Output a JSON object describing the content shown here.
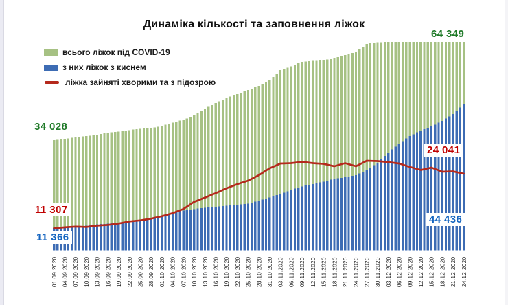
{
  "title": "Динаміка кількості та заповнення ліжок",
  "legend": {
    "items": [
      {
        "label": "всього ліжок під COVID-19",
        "type": "bar-swatch",
        "color_key": "total_bar"
      },
      {
        "label": "з них ліжок з киснем",
        "type": "bar-swatch",
        "color_key": "oxygen_bar"
      },
      {
        "label": "ліжка зайняті  хворими та з підозрою",
        "type": "line-swatch",
        "color_key": "occupied_line"
      }
    ]
  },
  "chart_data": {
    "type": "bar+line",
    "title": "Динаміка кількості та заповнення ліжок",
    "xlabel": "",
    "ylabel": "",
    "grid": false,
    "legend_position": "top-left",
    "dates": [
      "01.09.2020",
      "04.09.2020",
      "07.09.2020",
      "10.09.2020",
      "13.09.2020",
      "16.09.2020",
      "19.09.2020",
      "22.09.2020",
      "25.09.2020",
      "28.09.2020",
      "01.10.2020",
      "04.10.2020",
      "07.10.2020",
      "10.10.2020",
      "13.10.2020",
      "16.10.2020",
      "19.10.2020",
      "22.10.2020",
      "25.10.2020",
      "28.10.2020",
      "31.10.2020",
      "03.11.2020",
      "06.11.2020",
      "09.11.2020",
      "12.11.2020",
      "15.11.2020",
      "18.11.2020",
      "21.11.2020",
      "24.11.2020",
      "27.11.2020",
      "30.11.2020",
      "03.12.2020",
      "06.12.2020",
      "09.12.2020",
      "12.12.2020",
      "15.12.2020",
      "18.12.2020",
      "21.12.2020",
      "24.12.2020"
    ],
    "bars_per_label_interval": 3,
    "series": [
      {
        "key": "total",
        "name": "всього ліжок під COVID-19",
        "type": "bar",
        "color_key": "total_bar",
        "values": [
          34028,
          34460,
          34890,
          35320,
          35740,
          36280,
          36700,
          37130,
          37560,
          37770,
          38410,
          39480,
          40330,
          41610,
          43750,
          45450,
          47160,
          48230,
          49510,
          50790,
          52480,
          55650,
          56800,
          58200,
          58500,
          58700,
          59300,
          60300,
          61300,
          63700,
          64250,
          64349,
          64349,
          64349,
          64349,
          64349,
          64349,
          64349,
          64349
        ]
      },
      {
        "key": "oxygen",
        "name": "з них ліжок з киснем",
        "type": "bar",
        "color_key": "oxygen_bar",
        "values": [
          11366,
          11550,
          11730,
          11920,
          12290,
          12470,
          12660,
          13210,
          13580,
          13770,
          14320,
          15430,
          15980,
          16350,
          16720,
          16910,
          17280,
          17460,
          17830,
          18570,
          19490,
          20420,
          21520,
          22450,
          23060,
          23740,
          24480,
          24900,
          25450,
          26740,
          28770,
          31540,
          33930,
          35960,
          37430,
          38540,
          40010,
          41860,
          44436
        ]
      },
      {
        "key": "occupied",
        "name": "ліжка зайняті хворими та з підозрою",
        "type": "line",
        "color_key": "occupied_line",
        "values": [
          11307,
          11560,
          11720,
          11640,
          11960,
          12120,
          12450,
          12930,
          13170,
          13570,
          14140,
          14860,
          15830,
          17500,
          18480,
          19530,
          20660,
          21620,
          22440,
          23720,
          25320,
          26440,
          26520,
          26840,
          26520,
          26360,
          25800,
          26520,
          25800,
          27080,
          27000,
          26760,
          26440,
          25640,
          24920,
          25480,
          24520,
          24600,
          24041
        ]
      }
    ],
    "annotations": {
      "total_start": "34 028",
      "total_end": "64 349",
      "occupied_start": "11 307",
      "occupied_end": "24 041",
      "oxygen_start": "11 366",
      "oxygen_end": "44 436"
    },
    "colors": {
      "total_bar": "#a6c183",
      "oxygen_bar": "#3d6cb4",
      "occupied_line": "#b5291c",
      "total_label": "#1f7a28",
      "occupied_label": "#c00000",
      "oxygen_label": "#1565c0",
      "axis_text": "#222222"
    },
    "render_hints": {
      "geometry": {
        "x0": 78.6,
        "pitch": 5.237,
        "bar_w": 3.3,
        "baseline": 364.5,
        "label_y": 418
      },
      "scales": {
        "total": {
          "v_at_baseline": 0,
          "v_at_max": 64349,
          "y_at_max": 61
        },
        "oxygen": {
          "v_at_baseline": 5270,
          "v_at_max": 44436,
          "y_at_max": 152
        },
        "occupied": {
          "v_at_baseline": 6166,
          "v_at_max": 24041,
          "y_at_max": 253
        }
      },
      "note": "daily bars; one tick label per 3 days; oxygen bars and occupied line use secondary visual scales as in the source image"
    }
  }
}
